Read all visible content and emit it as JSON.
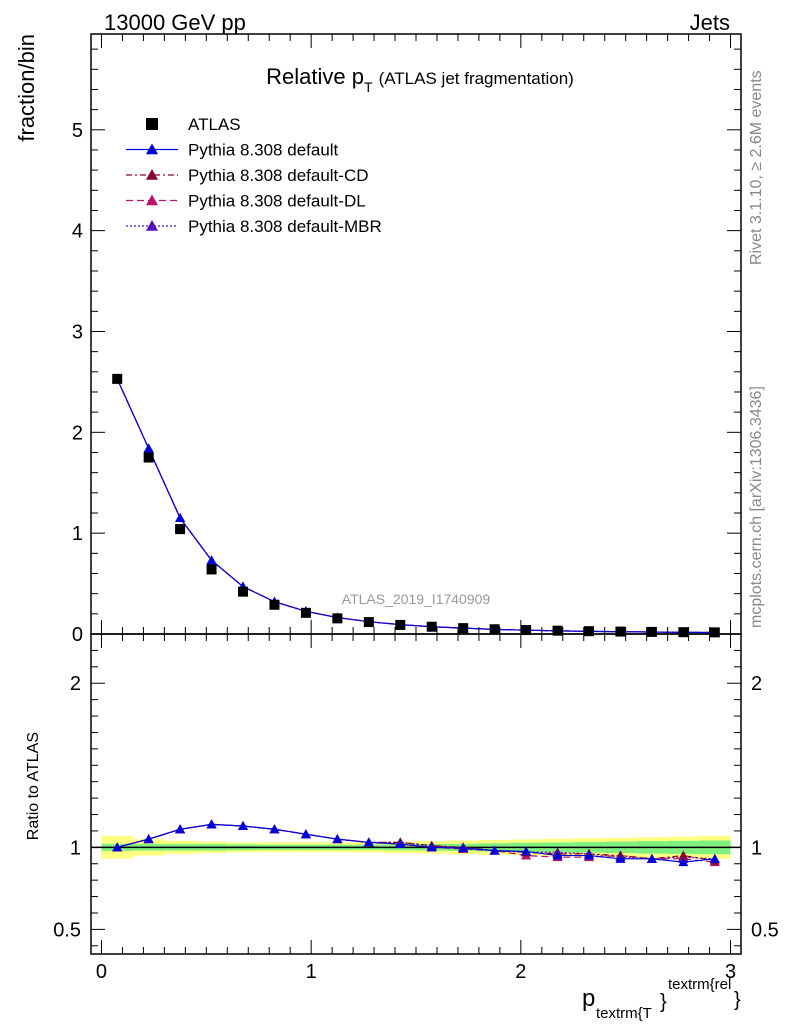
{
  "header": {
    "left": "13000 GeV pp",
    "right": "Jets"
  },
  "side_labels": {
    "rivet": "Rivet 3.1.10, ≥ 2.6M events",
    "source": "mcplots.cern.ch [arXiv:1306.3436]"
  },
  "chart_data": {
    "type": "line",
    "title": "Relative p_T (ATLAS jet fragmentation)",
    "title_main": "Relative p",
    "title_sub": "T",
    "title_note": "(ATLAS jet fragmentation)",
    "watermark": "ATLAS_2019_I1740909",
    "ylabel": "fraction/bin",
    "ratio_ylabel": "Ratio to ATLAS",
    "xlabel_main": "p",
    "xlabel_sub": "textrm{T",
    "xlabel_brace": "}",
    "xlabel_sup": "textrm{rel",
    "xlabel_end": "}",
    "xlim": [
      -0.05,
      3.05
    ],
    "ylim": [
      0,
      5.95
    ],
    "ratio_ylim": [
      0.35,
      2.3
    ],
    "x_ticks": [
      0,
      1,
      2,
      3
    ],
    "y_ticks": [
      0,
      1,
      2,
      3,
      4,
      5
    ],
    "ratio_ticks": [
      0.5,
      1,
      2
    ],
    "legend_position": "top-left",
    "x": [
      0.075,
      0.225,
      0.375,
      0.525,
      0.675,
      0.825,
      0.975,
      1.125,
      1.275,
      1.425,
      1.575,
      1.725,
      1.875,
      2.025,
      2.175,
      2.325,
      2.475,
      2.625,
      2.775,
      2.925
    ],
    "series": [
      {
        "name": "ATLAS",
        "color": "#000000",
        "marker": "square",
        "values": [
          2.53,
          1.75,
          1.04,
          0.64,
          0.42,
          0.29,
          0.21,
          0.155,
          0.118,
          0.09,
          0.072,
          0.058,
          0.047,
          0.039,
          0.033,
          0.028,
          0.024,
          0.021,
          0.018,
          0.016
        ],
        "ratio": [
          1,
          1,
          1,
          1,
          1,
          1,
          1,
          1,
          1,
          1,
          1,
          1,
          1,
          1,
          1,
          1,
          1,
          1,
          1,
          1
        ]
      },
      {
        "name": "Pythia 8.308 default",
        "color": "#0000dd",
        "marker": "triangle",
        "dash": "solid",
        "values": [
          2.53,
          1.84,
          1.15,
          0.73,
          0.47,
          0.32,
          0.225,
          0.163,
          0.122,
          0.093,
          0.072,
          0.058,
          0.046,
          0.038,
          0.031,
          0.026,
          0.022,
          0.0195,
          0.0163,
          0.0147
        ],
        "ratio": [
          1.0,
          1.05,
          1.11,
          1.14,
          1.13,
          1.11,
          1.08,
          1.05,
          1.03,
          1.02,
          1.0,
          0.995,
          0.98,
          0.975,
          0.95,
          0.95,
          0.93,
          0.93,
          0.91,
          0.93
        ]
      },
      {
        "name": "Pythia 8.308 default-CD",
        "color": "#880033",
        "marker": "triangle",
        "dash": "6,3,2,3",
        "values": [
          2.53,
          1.84,
          1.15,
          0.73,
          0.47,
          0.32,
          0.225,
          0.163,
          0.122,
          0.093,
          0.073,
          0.058,
          0.046,
          0.038,
          0.032,
          0.027,
          0.023,
          0.0195,
          0.017,
          0.0147
        ],
        "ratio": [
          1.0,
          1.05,
          1.11,
          1.14,
          1.13,
          1.11,
          1.08,
          1.05,
          1.03,
          1.03,
          1.01,
          1.0,
          0.98,
          0.97,
          0.96,
          0.96,
          0.95,
          0.93,
          0.95,
          0.92
        ]
      },
      {
        "name": "Pythia 8.308 default-DL",
        "color": "#bb1166",
        "marker": "triangle",
        "dash": "7,4",
        "values": [
          2.53,
          1.84,
          1.15,
          0.73,
          0.47,
          0.32,
          0.225,
          0.163,
          0.122,
          0.092,
          0.072,
          0.058,
          0.046,
          0.037,
          0.031,
          0.026,
          0.023,
          0.0195,
          0.0167,
          0.0146
        ],
        "ratio": [
          1.0,
          1.05,
          1.11,
          1.14,
          1.13,
          1.11,
          1.08,
          1.05,
          1.03,
          1.02,
          1.0,
          0.99,
          0.98,
          0.95,
          0.94,
          0.94,
          0.95,
          0.93,
          0.93,
          0.91
        ]
      },
      {
        "name": "Pythia 8.308 default-MBR",
        "color": "#5511bb",
        "marker": "triangle",
        "dash": "2,2",
        "values": [
          2.53,
          1.84,
          1.15,
          0.73,
          0.47,
          0.32,
          0.225,
          0.163,
          0.122,
          0.093,
          0.072,
          0.058,
          0.046,
          0.038,
          0.032,
          0.027,
          0.0225,
          0.0195,
          0.017,
          0.0147
        ],
        "ratio": [
          1.0,
          1.05,
          1.11,
          1.14,
          1.13,
          1.11,
          1.08,
          1.05,
          1.03,
          1.03,
          1.01,
          1.0,
          0.98,
          0.97,
          0.97,
          0.96,
          0.94,
          0.93,
          0.94,
          0.93
        ]
      }
    ],
    "uncertainty": {
      "stat_color": "#7ff07f",
      "syst_color": "#ffff80",
      "stat": [
        0.022,
        0.02,
        0.02,
        0.02,
        0.018,
        0.016,
        0.016,
        0.016,
        0.016,
        0.018,
        0.02,
        0.022,
        0.025,
        0.028,
        0.03,
        0.032,
        0.035,
        0.038,
        0.04,
        0.042
      ],
      "syst": [
        0.07,
        0.05,
        0.04,
        0.035,
        0.03,
        0.03,
        0.03,
        0.03,
        0.032,
        0.035,
        0.038,
        0.042,
        0.045,
        0.048,
        0.052,
        0.055,
        0.058,
        0.062,
        0.065,
        0.07
      ]
    }
  }
}
